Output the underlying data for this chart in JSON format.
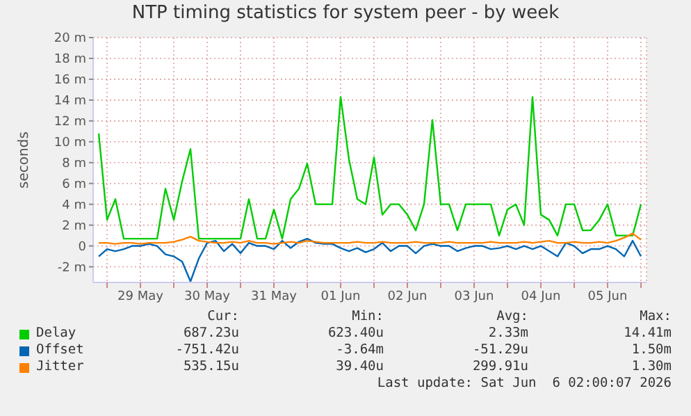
{
  "chart_data": {
    "type": "line",
    "title": "NTP timing statistics for system peer - by week",
    "ylabel": "seconds",
    "x": [
      "2026-05-28T21:00",
      "2026-05-29T00:00",
      "2026-05-29T03:00",
      "2026-05-29T06:00",
      "2026-05-29T09:00",
      "2026-05-29T12:00",
      "2026-05-29T15:00",
      "2026-05-29T18:00",
      "2026-05-29T21:00",
      "2026-05-30T00:00",
      "2026-05-30T03:00",
      "2026-05-30T06:00",
      "2026-05-30T09:00",
      "2026-05-30T12:00",
      "2026-05-30T15:00",
      "2026-05-30T18:00",
      "2026-05-30T21:00",
      "2026-05-31T00:00",
      "2026-05-31T03:00",
      "2026-05-31T06:00",
      "2026-05-31T09:00",
      "2026-05-31T12:00",
      "2026-05-31T15:00",
      "2026-05-31T18:00",
      "2026-05-31T21:00",
      "2026-06-01T00:00",
      "2026-06-01T03:00",
      "2026-06-01T06:00",
      "2026-06-01T09:00",
      "2026-06-01T12:00",
      "2026-06-01T15:00",
      "2026-06-01T18:00",
      "2026-06-01T21:00",
      "2026-06-02T00:00",
      "2026-06-02T03:00",
      "2026-06-02T06:00",
      "2026-06-02T09:00",
      "2026-06-02T12:00",
      "2026-06-02T15:00",
      "2026-06-02T18:00",
      "2026-06-02T21:00",
      "2026-06-03T00:00",
      "2026-06-03T03:00",
      "2026-06-03T06:00",
      "2026-06-03T09:00",
      "2026-06-03T12:00",
      "2026-06-03T15:00",
      "2026-06-03T18:00",
      "2026-06-03T21:00",
      "2026-06-04T00:00",
      "2026-06-04T03:00",
      "2026-06-04T06:00",
      "2026-06-04T09:00",
      "2026-06-04T12:00",
      "2026-06-04T15:00",
      "2026-06-04T18:00",
      "2026-06-04T21:00",
      "2026-06-05T00:00",
      "2026-06-05T03:00",
      "2026-06-05T06:00",
      "2026-06-05T09:00",
      "2026-06-05T12:00",
      "2026-06-05T15:00",
      "2026-06-05T18:00",
      "2026-06-05T21:00",
      "2026-06-06T00:00"
    ],
    "series": [
      {
        "name": "Delay",
        "color": "#00cc00",
        "values": [
          10.8,
          2.5,
          4.5,
          0.7,
          0.7,
          0.7,
          0.7,
          0.7,
          5.5,
          2.5,
          6.2,
          9.3,
          0.7,
          0.7,
          0.7,
          0.7,
          0.7,
          0.7,
          4.5,
          0.7,
          0.7,
          3.5,
          0.7,
          4.5,
          5.5,
          7.9,
          4,
          4,
          4,
          14.3,
          8.3,
          4.5,
          4,
          8.5,
          3,
          4,
          4,
          3,
          1.5,
          4,
          12.1,
          4,
          4,
          1.5,
          4,
          4,
          4,
          4,
          1,
          3.5,
          4,
          2,
          14.3,
          3,
          2.5,
          1,
          4,
          4,
          1.5,
          1.5,
          2.5,
          4,
          1,
          1,
          1,
          4
        ]
      },
      {
        "name": "Offset",
        "color": "#0066b3",
        "values": [
          -1,
          -0.3,
          -0.5,
          -0.3,
          0,
          0,
          0.2,
          0,
          -0.8,
          -1,
          -1.5,
          -3.4,
          -1.2,
          0.3,
          0.5,
          -0.5,
          0.2,
          -0.7,
          0.3,
          0,
          0,
          -0.3,
          0.5,
          -0.2,
          0.4,
          0.7,
          0.3,
          0.2,
          0.2,
          -0.2,
          -0.5,
          -0.2,
          -0.6,
          -0.3,
          0.3,
          -0.5,
          0,
          0,
          -0.7,
          0,
          0.2,
          0,
          0,
          -0.5,
          -0.2,
          0,
          0,
          -0.3,
          -0.2,
          0,
          -0.3,
          0,
          -0.3,
          0,
          -0.5,
          -1,
          0.3,
          0,
          -0.7,
          -0.3,
          -0.3,
          0,
          -0.3,
          -1,
          0.5,
          -1
        ]
      },
      {
        "name": "Jitter",
        "color": "#ff8000",
        "values": [
          0.3,
          0.3,
          0.2,
          0.3,
          0.3,
          0.2,
          0.3,
          0.3,
          0.3,
          0.4,
          0.6,
          0.9,
          0.5,
          0.4,
          0.3,
          0.3,
          0.4,
          0.3,
          0.5,
          0.3,
          0.3,
          0.2,
          0.3,
          0.4,
          0.3,
          0.5,
          0.4,
          0.3,
          0.3,
          0.3,
          0.3,
          0.4,
          0.3,
          0.3,
          0.4,
          0.3,
          0.3,
          0.3,
          0.4,
          0.3,
          0.3,
          0.3,
          0.4,
          0.3,
          0.3,
          0.3,
          0.3,
          0.4,
          0.3,
          0.3,
          0.3,
          0.4,
          0.3,
          0.4,
          0.5,
          0.3,
          0.3,
          0.4,
          0.3,
          0.3,
          0.4,
          0.3,
          0.5,
          0.8,
          1.2,
          0.6
        ]
      }
    ],
    "xlim": [
      "2026-05-28T19:00",
      "2026-06-06T02:00"
    ],
    "xticks": [
      {
        "value": "2026-05-29T00:00",
        "label": null
      },
      {
        "value": "2026-05-29T12:00",
        "label": "29 May"
      },
      {
        "value": "2026-05-30T00:00",
        "label": null
      },
      {
        "value": "2026-05-30T12:00",
        "label": "30 May"
      },
      {
        "value": "2026-05-31T00:00",
        "label": null
      },
      {
        "value": "2026-05-31T12:00",
        "label": "31 May"
      },
      {
        "value": "2026-06-01T00:00",
        "label": null
      },
      {
        "value": "2026-06-01T12:00",
        "label": "01 Jun"
      },
      {
        "value": "2026-06-02T00:00",
        "label": null
      },
      {
        "value": "2026-06-02T12:00",
        "label": "02 Jun"
      },
      {
        "value": "2026-06-03T00:00",
        "label": null
      },
      {
        "value": "2026-06-03T12:00",
        "label": "03 Jun"
      },
      {
        "value": "2026-06-04T00:00",
        "label": null
      },
      {
        "value": "2026-06-04T12:00",
        "label": "04 Jun"
      },
      {
        "value": "2026-06-05T00:00",
        "label": null
      },
      {
        "value": "2026-06-05T12:00",
        "label": "05 Jun"
      },
      {
        "value": "2026-06-06T00:00",
        "label": null
      }
    ],
    "ylim": [
      -3.5,
      20
    ],
    "yticks": [
      {
        "value": -2,
        "label": "-2 m"
      },
      0,
      {
        "value": 2,
        "label": "2 m"
      },
      {
        "value": 4,
        "label": "4 m"
      },
      {
        "value": 6,
        "label": "6 m"
      },
      {
        "value": 8,
        "label": "8 m"
      },
      {
        "value": 10,
        "label": "10 m"
      },
      {
        "value": 12,
        "label": "12 m"
      },
      {
        "value": 14,
        "label": "14 m"
      },
      {
        "value": 16,
        "label": "16 m"
      },
      {
        "value": 18,
        "label": "18 m"
      },
      {
        "value": 20,
        "label": "20 m"
      }
    ],
    "grid": true,
    "legend": "bottom",
    "marker": "none",
    "line_style": "solid",
    "annotations": [
      "Cur:",
      "Min:",
      "Avg:",
      "Max:",
      "687.23u",
      "623.40u",
      "2.33m",
      "14.41m",
      "-751.42u",
      "-3.64m",
      "-51.29u",
      "1.50m",
      "535.15u",
      "39.40u",
      "299.91u",
      "1.30m",
      "Last update: Sat Jun  6 02:00:07 2026"
    ]
  }
}
